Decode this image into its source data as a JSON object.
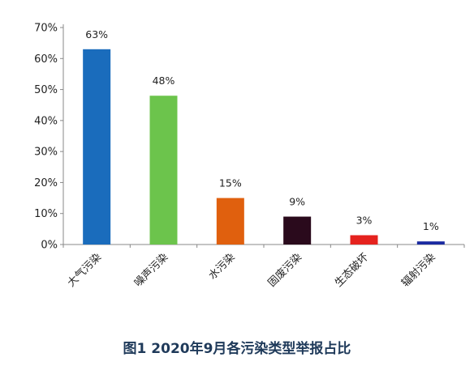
{
  "caption": "图1 2020年9月各污染类型举报占比",
  "chart_data": {
    "type": "bar",
    "title": "图1 2020年9月各污染类型举报占比",
    "categories": [
      "大气污染",
      "噪声污染",
      "水污染",
      "固废污染",
      "生态破坏",
      "辐射污染"
    ],
    "values": [
      63,
      48,
      15,
      9,
      3,
      1
    ],
    "data_labels": [
      "63%",
      "48%",
      "15%",
      "9%",
      "3%",
      "1%"
    ],
    "colors": [
      "#1a6cbc",
      "#6cc44c",
      "#e0600e",
      "#2a0a1c",
      "#e5221e",
      "#1a2aa0"
    ],
    "ylim": [
      0,
      70
    ],
    "yticks": [
      0,
      10,
      20,
      30,
      40,
      50,
      60,
      70
    ],
    "ytick_labels": [
      "0%",
      "10%",
      "20%",
      "30%",
      "40%",
      "50%",
      "60%",
      "70%"
    ],
    "xlabel": "",
    "ylabel": "",
    "grid": false,
    "legend": "none"
  }
}
